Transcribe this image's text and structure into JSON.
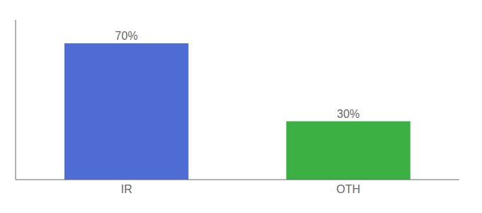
{
  "chart_data": {
    "type": "bar",
    "categories": [
      "IR",
      "OTH"
    ],
    "values": [
      70,
      30
    ],
    "value_labels": [
      "70%",
      "30%"
    ],
    "colors": [
      "#4f6cd4",
      "#3cb043"
    ],
    "ylim": [
      0,
      82
    ],
    "data_labels": true,
    "tick_labels": "x",
    "grid": false
  }
}
